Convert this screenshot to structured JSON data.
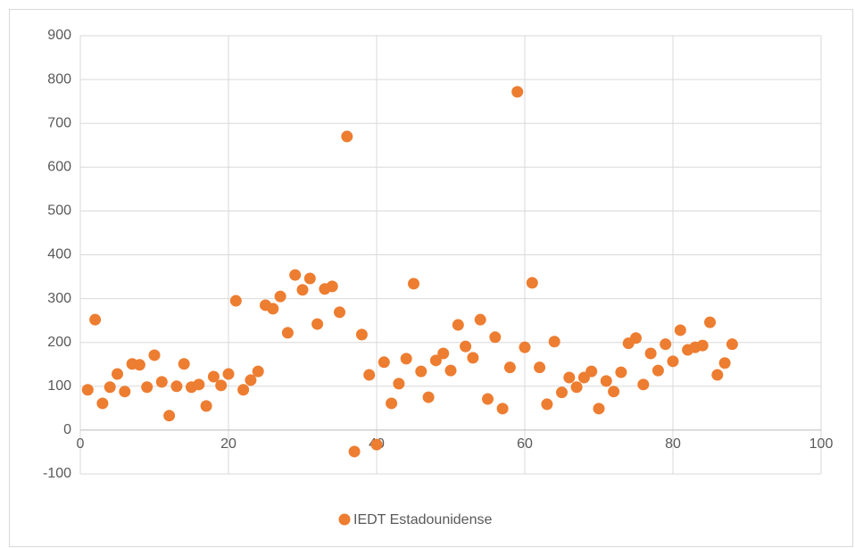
{
  "chart_data": {
    "type": "scatter",
    "x": [
      1,
      2,
      3,
      4,
      5,
      6,
      7,
      8,
      9,
      10,
      11,
      12,
      13,
      14,
      15,
      16,
      17,
      18,
      19,
      20,
      21,
      22,
      23,
      24,
      25,
      26,
      27,
      28,
      29,
      30,
      31,
      32,
      33,
      34,
      35,
      36,
      37,
      38,
      39,
      40,
      41,
      42,
      43,
      44,
      45,
      46,
      47,
      48,
      49,
      50,
      51,
      52,
      53,
      54,
      55,
      56,
      57,
      58,
      59,
      60,
      61,
      62,
      63,
      64,
      65,
      66,
      67,
      68,
      69,
      70,
      71,
      72,
      73,
      74,
      75,
      76,
      77,
      78,
      79,
      80,
      81,
      82,
      83,
      84,
      85,
      86,
      87,
      88
    ],
    "series": [
      {
        "name": "IEDT Estadounidense",
        "color": "#ed7d31",
        "values": [
          92,
          252,
          61,
          98,
          128,
          88,
          151,
          149,
          98,
          171,
          110,
          33,
          100,
          151,
          98,
          104,
          55,
          122,
          102,
          128,
          295,
          92,
          114,
          134,
          285,
          277,
          305,
          222,
          354,
          320,
          346,
          242,
          322,
          328,
          269,
          670,
          -49,
          218,
          126,
          -33,
          155,
          61,
          106,
          163,
          334,
          134,
          75,
          159,
          175,
          136,
          240,
          191,
          165,
          252,
          71,
          212,
          49,
          143,
          772,
          189,
          336,
          143,
          59,
          202,
          86,
          120,
          98,
          120,
          134,
          49,
          112,
          88,
          132,
          198,
          210,
          104,
          175,
          136,
          196,
          157,
          228,
          183,
          189,
          193,
          246,
          126,
          153,
          196
        ]
      }
    ],
    "xlim": [
      0,
      100
    ],
    "xticks": [
      0,
      20,
      40,
      60,
      80,
      100
    ],
    "ylim": [
      -100,
      900
    ],
    "yticks": [
      -100,
      0,
      100,
      200,
      300,
      400,
      500,
      600,
      700,
      800,
      900
    ],
    "grid": true,
    "legend": "bottom"
  }
}
